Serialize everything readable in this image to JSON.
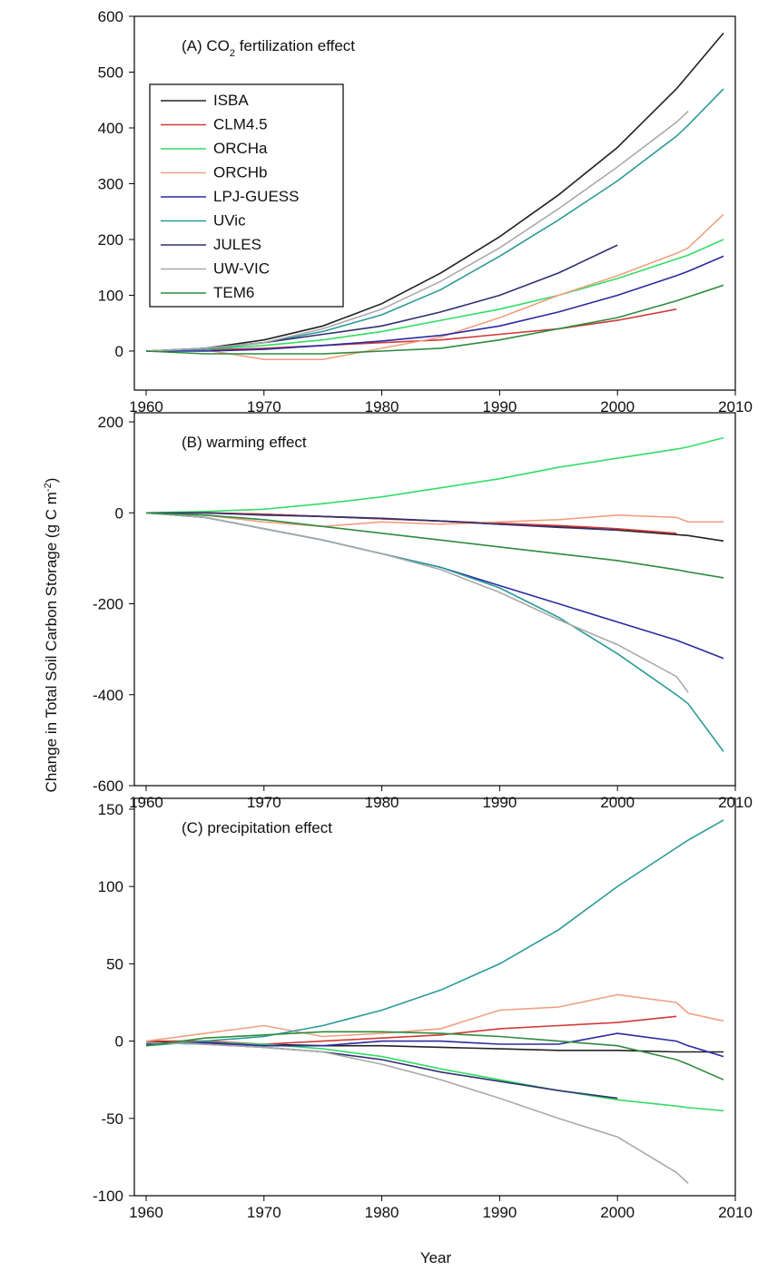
{
  "ylabel": [
    "Change in Total Soil Carbon Storage (g C m",
    "-2",
    ")"
  ],
  "xlabel": "Year",
  "chart_data": [
    {
      "type": "line",
      "title": [
        "(A) CO",
        "2",
        " fertilization effect"
      ],
      "legend": "upper left",
      "x": [
        1960,
        1965,
        1970,
        1975,
        1980,
        1985,
        1990,
        1995,
        2000,
        2005,
        2006,
        2009
      ],
      "xlim": [
        1959,
        2010
      ],
      "xticks": [
        1960,
        1970,
        1980,
        1990,
        2000,
        2010
      ],
      "ylim": [
        -70,
        600
      ],
      "yticks": [
        0,
        100,
        200,
        300,
        400,
        500,
        600
      ],
      "series": [
        {
          "name": "ISBA",
          "color": "#222222",
          "values": [
            0,
            5,
            20,
            45,
            85,
            140,
            205,
            280,
            365,
            470,
            495,
            570
          ]
        },
        {
          "name": "CLM4.5",
          "color": "#d03a3a",
          "values": [
            0,
            2,
            5,
            10,
            15,
            20,
            30,
            40,
            55,
            75,
            null,
            null
          ]
        },
        {
          "name": "ORCHa",
          "color": "#33dd66",
          "values": [
            0,
            3,
            10,
            20,
            35,
            55,
            75,
            100,
            130,
            165,
            172,
            200
          ]
        },
        {
          "name": "ORCHb",
          "color": "#f0a080",
          "values": [
            0,
            2,
            -15,
            -15,
            5,
            25,
            60,
            100,
            135,
            175,
            185,
            245
          ]
        },
        {
          "name": "LPJ-GUESS",
          "color": "#2a2aa0",
          "values": [
            0,
            0,
            3,
            10,
            18,
            28,
            45,
            70,
            100,
            135,
            143,
            170
          ]
        },
        {
          "name": "UVic",
          "color": "#2a9a9a",
          "values": [
            0,
            3,
            15,
            35,
            65,
            110,
            170,
            235,
            305,
            385,
            405,
            470
          ]
        },
        {
          "name": "JULES",
          "color": "#303070",
          "values": [
            0,
            5,
            15,
            30,
            45,
            70,
            100,
            140,
            190,
            null,
            null,
            null
          ]
        },
        {
          "name": "UW-VIC",
          "color": "#aaaaaa",
          "values": [
            0,
            5,
            15,
            40,
            75,
            125,
            185,
            255,
            330,
            410,
            430,
            null
          ]
        },
        {
          "name": "TEM6",
          "color": "#2e8b3e",
          "values": [
            0,
            -5,
            -5,
            -5,
            0,
            5,
            20,
            40,
            60,
            90,
            97,
            118
          ]
        }
      ]
    },
    {
      "type": "line",
      "title": "(B) warming effect",
      "x": [
        1960,
        1965,
        1970,
        1975,
        1980,
        1985,
        1990,
        1995,
        2000,
        2005,
        2006,
        2009
      ],
      "xlim": [
        1959,
        2010
      ],
      "xticks": [
        1960,
        1970,
        1980,
        1990,
        2000,
        2010
      ],
      "ylim": [
        -600,
        220
      ],
      "yticks": [
        -600,
        -400,
        -200,
        0,
        200
      ],
      "series": [
        {
          "name": "ISBA",
          "color": "#222222",
          "values": [
            0,
            0,
            -3,
            -8,
            -13,
            -18,
            -25,
            -30,
            -38,
            -48,
            -50,
            -62
          ]
        },
        {
          "name": "CLM4.5",
          "color": "#d03a3a",
          "values": [
            0,
            0,
            -3,
            -8,
            -13,
            -18,
            -23,
            -28,
            -35,
            -45,
            null,
            null
          ]
        },
        {
          "name": "ORCHa",
          "color": "#33dd66",
          "values": [
            0,
            3,
            8,
            20,
            35,
            55,
            75,
            100,
            120,
            140,
            145,
            165
          ]
        },
        {
          "name": "ORCHb",
          "color": "#f0a080",
          "values": [
            0,
            -5,
            -20,
            -30,
            -20,
            -25,
            -20,
            -15,
            -5,
            -10,
            -20,
            -20
          ]
        },
        {
          "name": "LPJ-GUESS",
          "color": "#2a2aa0",
          "values": [
            0,
            -10,
            -35,
            -60,
            -90,
            -120,
            -160,
            -200,
            -240,
            -280,
            -290,
            -320
          ]
        },
        {
          "name": "UVic",
          "color": "#2a9a9a",
          "values": [
            0,
            -10,
            -35,
            -60,
            -90,
            -120,
            -165,
            -230,
            -310,
            -400,
            -420,
            -525
          ]
        },
        {
          "name": "JULES",
          "color": "#303070",
          "values": [
            0,
            0,
            -5,
            -8,
            -12,
            -18,
            -25,
            -32,
            -38,
            null,
            null,
            null
          ]
        },
        {
          "name": "UW-VIC",
          "color": "#aaaaaa",
          "values": [
            0,
            -10,
            -35,
            -60,
            -90,
            -125,
            -175,
            -235,
            -290,
            -360,
            -395,
            null
          ]
        },
        {
          "name": "TEM6",
          "color": "#2e8b3e",
          "values": [
            0,
            -5,
            -15,
            -30,
            -45,
            -60,
            -75,
            -90,
            -105,
            -125,
            -130,
            -143
          ]
        }
      ]
    },
    {
      "type": "line",
      "title": "(C) precipitation effect",
      "x": [
        1960,
        1965,
        1970,
        1975,
        1980,
        1985,
        1990,
        1995,
        2000,
        2005,
        2006,
        2009
      ],
      "xlim": [
        1959,
        2010
      ],
      "xticks": [
        1960,
        1970,
        1980,
        1990,
        2000,
        2010
      ],
      "ylim": [
        -100,
        157
      ],
      "yticks": [
        -100,
        -50,
        0,
        50,
        100,
        150
      ],
      "series": [
        {
          "name": "ISBA",
          "color": "#222222",
          "values": [
            0,
            -2,
            -2,
            -3,
            -3,
            -4,
            -5,
            -6,
            -6,
            -7,
            -7,
            -7
          ]
        },
        {
          "name": "CLM4.5",
          "color": "#d03a3a",
          "values": [
            0,
            0,
            -2,
            0,
            2,
            4,
            8,
            10,
            12,
            16,
            null,
            null
          ]
        },
        {
          "name": "ORCHa",
          "color": "#33dd66",
          "values": [
            -2,
            -1,
            -2,
            -5,
            -10,
            -18,
            -25,
            -32,
            -38,
            -42,
            -43,
            -45
          ]
        },
        {
          "name": "ORCHb",
          "color": "#f0a080",
          "values": [
            0,
            5,
            10,
            3,
            5,
            8,
            20,
            22,
            30,
            25,
            18,
            13
          ]
        },
        {
          "name": "LPJ-GUESS",
          "color": "#2a2aa0",
          "values": [
            -2,
            -1,
            -3,
            -3,
            0,
            0,
            -2,
            -2,
            5,
            0,
            -3,
            -10
          ]
        },
        {
          "name": "UVic",
          "color": "#2a9a9a",
          "values": [
            -3,
            0,
            3,
            10,
            20,
            33,
            50,
            72,
            100,
            125,
            130,
            143
          ]
        },
        {
          "name": "JULES",
          "color": "#303070",
          "values": [
            -1,
            -2,
            -4,
            -7,
            -12,
            -20,
            -26,
            -32,
            -37,
            null,
            null,
            null
          ]
        },
        {
          "name": "UW-VIC",
          "color": "#aaaaaa",
          "values": [
            -1,
            -2,
            -4,
            -7,
            -15,
            -25,
            -37,
            -50,
            -62,
            -85,
            -92,
            null
          ]
        },
        {
          "name": "TEM6",
          "color": "#2e8b3e",
          "values": [
            -3,
            2,
            4,
            6,
            6,
            5,
            3,
            0,
            -3,
            -12,
            -15,
            -25
          ]
        }
      ]
    }
  ]
}
